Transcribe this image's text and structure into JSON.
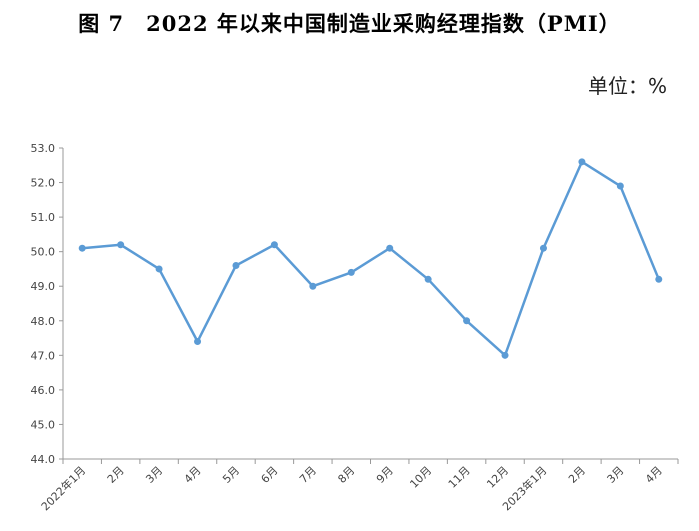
{
  "title": "图 7　2022 年以来中国制造业采购经理指数（PMI）",
  "unit_label": "单位：%",
  "chart_data": {
    "type": "line",
    "categories": [
      "2022年1月",
      "2月",
      "3月",
      "4月",
      "5月",
      "6月",
      "7月",
      "8月",
      "9月",
      "10月",
      "11月",
      "12月",
      "2023年1月",
      "2月",
      "3月",
      "4月"
    ],
    "series": [
      {
        "values": [
          50.1,
          50.2,
          49.5,
          47.4,
          49.6,
          50.2,
          49.0,
          49.4,
          50.1,
          49.2,
          48.0,
          47.0,
          50.1,
          52.6,
          51.9,
          49.2
        ]
      }
    ],
    "y_ticks": [
      "44.0",
      "45.0",
      "46.0",
      "47.0",
      "48.0",
      "49.0",
      "50.0",
      "51.0",
      "52.0",
      "53.0"
    ],
    "ylim": [
      44.0,
      53.0
    ],
    "grid": false,
    "line_color": "#5b9bd5",
    "axis_color": "#999999"
  }
}
